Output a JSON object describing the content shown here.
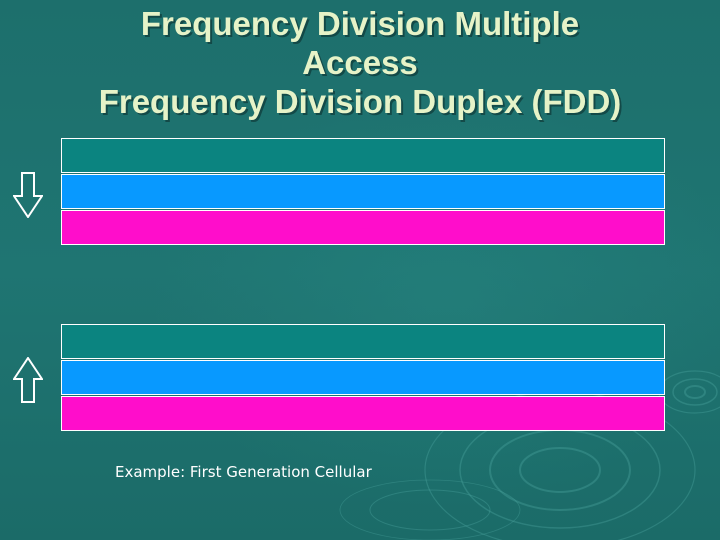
{
  "slide": {
    "title_lines": [
      "Frequency Division Multiple",
      "Access",
      "Frequency Division Duplex (FDD)"
    ],
    "example_text": "Example: First Generation Cellular"
  },
  "icons": {
    "downlink": "arrow-down-icon",
    "uplink": "arrow-up-icon"
  },
  "colors": {
    "background": "#1f706e",
    "title": "#e6f3c8",
    "channel_teal": "#0b8480",
    "channel_blue": "#0899ff",
    "channel_magenta": "#ff0dcb",
    "band_border": "#ffffff",
    "arrow": "#ffffff",
    "example_text": "#ffffff"
  }
}
